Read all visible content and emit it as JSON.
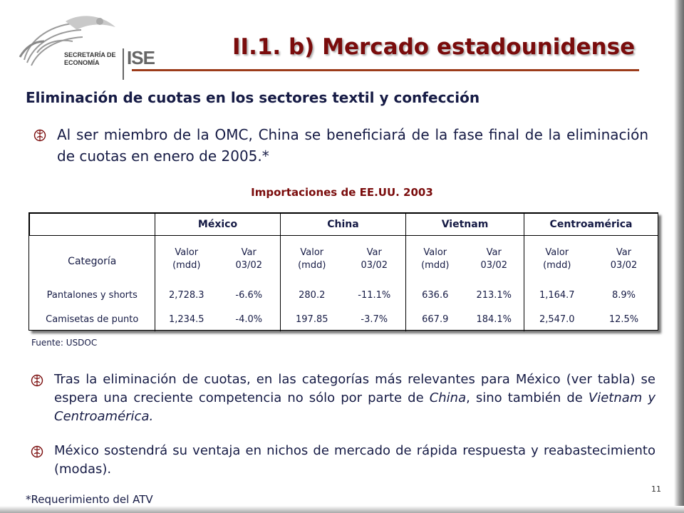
{
  "logo": {
    "line1": "SECRETARÍA DE",
    "line2": "ECONOMÍA",
    "acronym": "ISE"
  },
  "title": "II.1. b) Mercado estadounidense",
  "subtitle": "Eliminación de cuotas en los sectores textil y confección",
  "bullet_glyph": "",
  "para1": "Al ser miembro de la OMC, China se beneficiará de la fase final de la eliminación de cuotas en enero de 2005.*",
  "table": {
    "title": "Importaciones de EE.UU. 2003",
    "headers": [
      "",
      "México",
      "China",
      "Vietnam",
      "Centroamérica"
    ],
    "category_label": "Categoría",
    "sub_valor": [
      "Valor",
      "(mdd)"
    ],
    "sub_var": [
      "Var",
      "03/02"
    ],
    "rows": [
      {
        "label": "Pantalones y shorts",
        "values": [
          "2,728.3",
          "-6.6%",
          "280.2",
          "-11.1%",
          "636.6",
          "213.1%",
          "1,164.7",
          "8.9%"
        ]
      },
      {
        "label": "Camisetas de punto",
        "values": [
          "1,234.5",
          "-4.0%",
          "197.85",
          "-3.7%",
          "667.9",
          "184.1%",
          "2,547.0",
          "12.5%"
        ]
      }
    ]
  },
  "source": "Fuente: USDOC",
  "para2": {
    "pre": "Tras la eliminación de cuotas, en las categorías más relevantes para México (ver tabla) se espera una creciente competencia no sólo por parte de ",
    "em1": "China",
    "mid": ", sino también de ",
    "em2": "Vietnam y Centroamérica."
  },
  "para3": "México sostendrá su ventaja en nichos de mercado de rápida respuesta y reabastecimiento (modas).",
  "footnote": "*Requerimiento del ATV",
  "page_number": "11",
  "colors": {
    "title": "#7a0c0c",
    "text": "#161b45",
    "rule": "#9c3b1a"
  }
}
